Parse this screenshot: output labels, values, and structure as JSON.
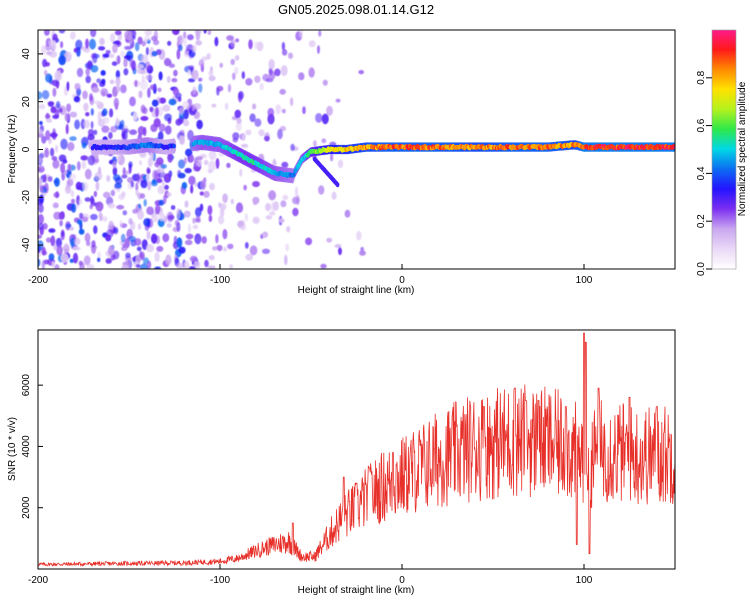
{
  "figure_title": "GN05.2025.098.01.14.G12",
  "colors": {
    "snr_line": "#e8302a",
    "colormap": [
      "#ffffff",
      "#e9d8f7",
      "#c9a6f0",
      "#7b2ff0",
      "#2414ff",
      "#0c6cf2",
      "#00d8e6",
      "#2ee84a",
      "#b4f21e",
      "#ffe200",
      "#ff8a00",
      "#ff1a1a",
      "#ff1a8c"
    ]
  },
  "chart_data": [
    {
      "type": "heatmap",
      "title": "GN05.2025.098.01.14.G12",
      "xlabel": "Height of straight line (km)",
      "ylabel": "Frequency (Hz)",
      "xlim": [
        -200,
        150
      ],
      "ylim": [
        -50,
        50
      ],
      "x_ticks": [
        -200,
        -100,
        0,
        100
      ],
      "y_ticks": [
        -40,
        -20,
        0,
        20,
        40
      ],
      "colorbar": {
        "label": "Normalized spectral amplitude",
        "range": [
          0.0,
          1.0
        ],
        "ticks": [
          0.0,
          0.2,
          0.4,
          0.6,
          0.8
        ]
      },
      "ridge": {
        "description_points_x": [
          -160,
          -150,
          -140,
          -130,
          -110,
          -100,
          -90,
          -80,
          -70,
          -60,
          -55,
          -50,
          -40,
          -30,
          -20,
          -10,
          0,
          20,
          40,
          60,
          80,
          95,
          100,
          120,
          150
        ],
        "description_points_y": [
          1,
          1,
          2,
          1,
          3,
          2,
          -2,
          -6,
          -10,
          -11,
          -4,
          -1,
          0,
          0,
          1,
          1,
          1,
          1,
          1,
          1,
          1,
          2,
          1,
          1,
          1
        ],
        "amplitude": [
          0.35,
          0.4,
          0.45,
          0.35,
          0.5,
          0.5,
          0.55,
          0.55,
          0.5,
          0.45,
          0.5,
          0.6,
          0.75,
          0.8,
          0.85,
          0.9,
          0.9,
          0.9,
          0.85,
          0.9,
          0.9,
          0.85,
          0.95,
          0.95,
          0.95
        ]
      }
    },
    {
      "type": "line",
      "xlabel": "Height of straight line (km)",
      "ylabel": "SNR (10 * v/v)",
      "xlim": [
        -200,
        150
      ],
      "ylim": [
        0,
        7800
      ],
      "x_ticks": [
        -200,
        -100,
        0,
        100
      ],
      "y_ticks": [
        2000,
        4000,
        6000
      ],
      "series": [
        {
          "envelope_x": [
            -200,
            -150,
            -120,
            -100,
            -90,
            -80,
            -70,
            -62,
            -55,
            -48,
            -40,
            -35,
            -30,
            -25,
            -20,
            -10,
            0,
            10,
            20,
            30,
            40,
            50,
            60,
            70,
            80,
            90,
            95,
            98,
            100,
            102,
            110,
            120,
            130,
            140,
            150
          ],
          "envelope_y": [
            150,
            180,
            200,
            250,
            350,
            600,
            800,
            900,
            400,
            400,
            1100,
            1500,
            1800,
            2000,
            2300,
            2700,
            3000,
            3300,
            3600,
            3800,
            4000,
            4100,
            4200,
            4200,
            4100,
            4000,
            3800,
            3600,
            3900,
            3500,
            3900,
            3800,
            3700,
            3700,
            3800
          ],
          "spikes_x": [
            -60,
            -32,
            -25,
            -18,
            -5,
            45,
            62,
            68,
            75,
            90,
            96,
            100,
            101,
            103,
            108,
            125,
            140
          ],
          "spikes_y": [
            1500,
            3000,
            2800,
            3300,
            3800,
            5300,
            5900,
            5500,
            5500,
            5300,
            800,
            7700,
            7400,
            500,
            5900,
            5600,
            5300
          ]
        }
      ]
    }
  ]
}
